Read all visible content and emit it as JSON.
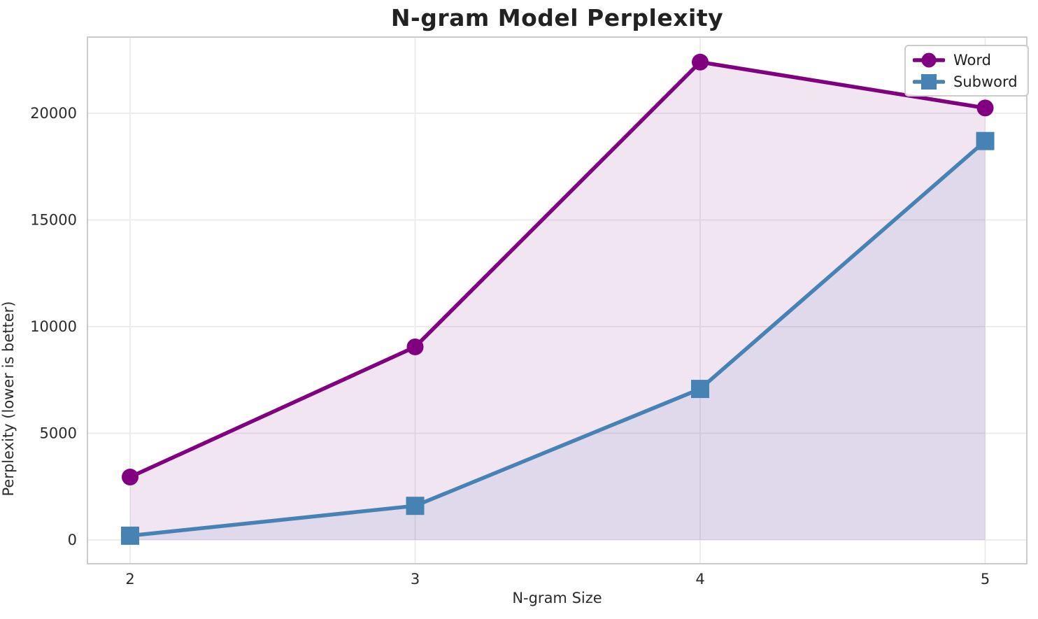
{
  "chart_data": {
    "type": "line",
    "title": "N-gram Model Perplexity",
    "xlabel": "N-gram Size",
    "ylabel": "Perplexity (lower is better)",
    "x": [
      2,
      3,
      4,
      5
    ],
    "series": [
      {
        "name": "Word",
        "marker": "circle",
        "color": "#800080",
        "fill_opacity": 0.1,
        "values": [
          2950,
          9050,
          22400,
          20250
        ]
      },
      {
        "name": "Subword",
        "marker": "square",
        "color": "#4682B4",
        "fill_opacity": 0.11,
        "values": [
          200,
          1600,
          7080,
          18700
        ]
      }
    ],
    "x_ticks": [
      "2",
      "3",
      "4",
      "5"
    ],
    "y_ticks": [
      0,
      5000,
      10000,
      15000,
      20000
    ],
    "xlim": [
      1.85,
      5.15
    ],
    "ylim": [
      -1100,
      23600
    ],
    "area_baseline": 0,
    "grid": true,
    "legend_position": "upper right",
    "grid_color": "#ECECEC",
    "frame_color": "#CBCBCB",
    "text_color": "#2b2b2b"
  }
}
